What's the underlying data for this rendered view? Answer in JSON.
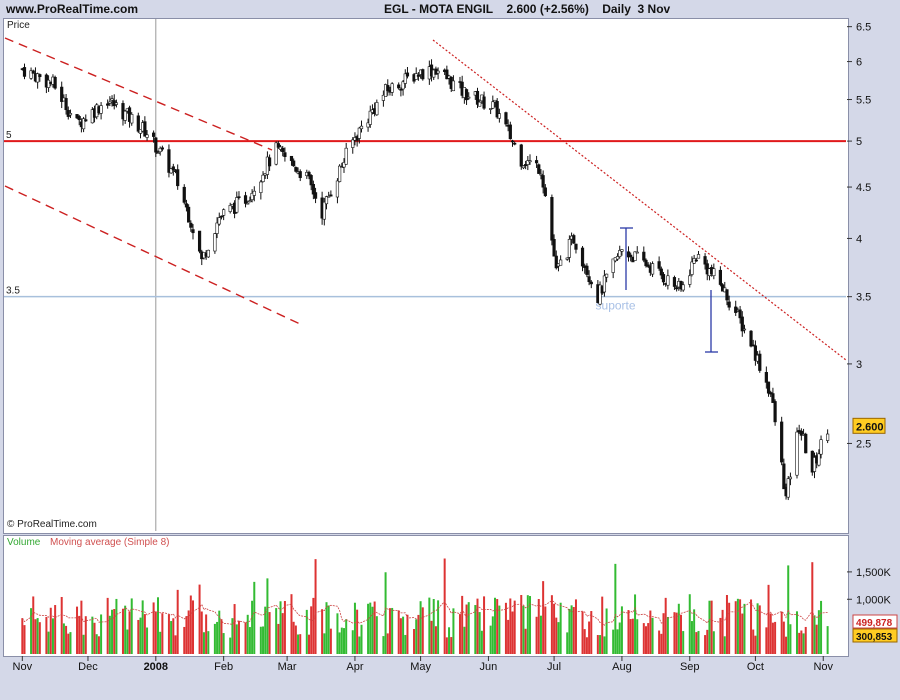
{
  "header": {
    "site": "www.ProRealTime.com",
    "instrument": "EGL - MOTA ENGIL",
    "last": "2.600 (+2.56%)",
    "period": "Daily",
    "date": "3 Nov"
  },
  "price_panel": {
    "title": "Price",
    "copyright": "© ProRealTime.com",
    "support_label": "suporte",
    "level_5_label": "5",
    "level_35_label": "3.5",
    "last_price_tag": "2.600"
  },
  "volume_panel": {
    "title_volume": "Volume",
    "title_ma": "Moving average (Simple 8)",
    "tag_ma": "499,878",
    "tag_vol": "300,853"
  },
  "colors": {
    "up": "#ffffff",
    "down": "#111111",
    "resistance": "#e0191b",
    "support": "#a8c0dc",
    "trend": "#cc2020",
    "vol_up": "#33bb33",
    "vol_down": "#dd3333",
    "measure": "#2b3aa8",
    "support_text": "#a8c0e6"
  },
  "chart_data": {
    "type": "candlestick",
    "y_axis_labels": [
      "6.5",
      "6",
      "5.5",
      "5",
      "4.5",
      "4",
      "3.5",
      "3",
      "2.5"
    ],
    "y_ticks": [
      6.5,
      6,
      5.5,
      5,
      4.5,
      4,
      3.5,
      3,
      2.5
    ],
    "ylim": [
      2.05,
      6.6
    ],
    "scale": "log",
    "x_labels": [
      "Nov",
      "Dec",
      "2008",
      "Feb",
      "Mar",
      "Apr",
      "May",
      "Jun",
      "Jul",
      "Aug",
      "Sep",
      "Oct",
      "Nov"
    ],
    "horizontal_levels": [
      5,
      3.5
    ],
    "last_price": 2.6,
    "volume_axis_labels": [
      "1,500K",
      "1,000K"
    ],
    "volume_ticks": [
      1500000,
      1000000
    ],
    "volume_ma_last": 499878,
    "volume_last": 300853,
    "price_anchors": [
      {
        "date": "2007-11-01",
        "close": 5.9
      },
      {
        "date": "2007-11-15",
        "close": 5.7
      },
      {
        "date": "2007-11-26",
        "close": 5.2
      },
      {
        "date": "2007-12-10",
        "close": 5.5
      },
      {
        "date": "2007-12-28",
        "close": 5.1
      },
      {
        "date": "2008-01-10",
        "close": 4.6
      },
      {
        "date": "2008-01-18",
        "close": 4.1
      },
      {
        "date": "2008-01-22",
        "close": 3.8
      },
      {
        "date": "2008-01-30",
        "close": 4.2
      },
      {
        "date": "2008-02-12",
        "close": 4.4
      },
      {
        "date": "2008-02-25",
        "close": 4.9
      },
      {
        "date": "2008-03-10",
        "close": 4.6
      },
      {
        "date": "2008-03-17",
        "close": 4.25
      },
      {
        "date": "2008-03-31",
        "close": 5.0
      },
      {
        "date": "2008-04-15",
        "close": 5.6
      },
      {
        "date": "2008-04-30",
        "close": 5.85
      },
      {
        "date": "2008-05-08",
        "close": 5.9
      },
      {
        "date": "2008-05-20",
        "close": 5.6
      },
      {
        "date": "2008-06-04",
        "close": 5.4
      },
      {
        "date": "2008-06-16",
        "close": 4.8
      },
      {
        "date": "2008-06-25",
        "close": 4.7
      },
      {
        "date": "2008-07-02",
        "close": 3.7
      },
      {
        "date": "2008-07-10",
        "close": 4.0
      },
      {
        "date": "2008-07-21",
        "close": 3.5
      },
      {
        "date": "2008-08-01",
        "close": 3.9
      },
      {
        "date": "2008-08-14",
        "close": 3.75
      },
      {
        "date": "2008-08-28",
        "close": 3.55
      },
      {
        "date": "2008-09-04",
        "close": 3.85
      },
      {
        "date": "2008-09-15",
        "close": 3.6
      },
      {
        "date": "2008-09-29",
        "close": 3.15
      },
      {
        "date": "2008-10-08",
        "close": 2.8
      },
      {
        "date": "2008-10-15",
        "close": 2.2
      },
      {
        "date": "2008-10-21",
        "close": 2.6
      },
      {
        "date": "2008-10-27",
        "close": 2.35
      },
      {
        "date": "2008-11-03",
        "close": 2.6
      }
    ]
  }
}
